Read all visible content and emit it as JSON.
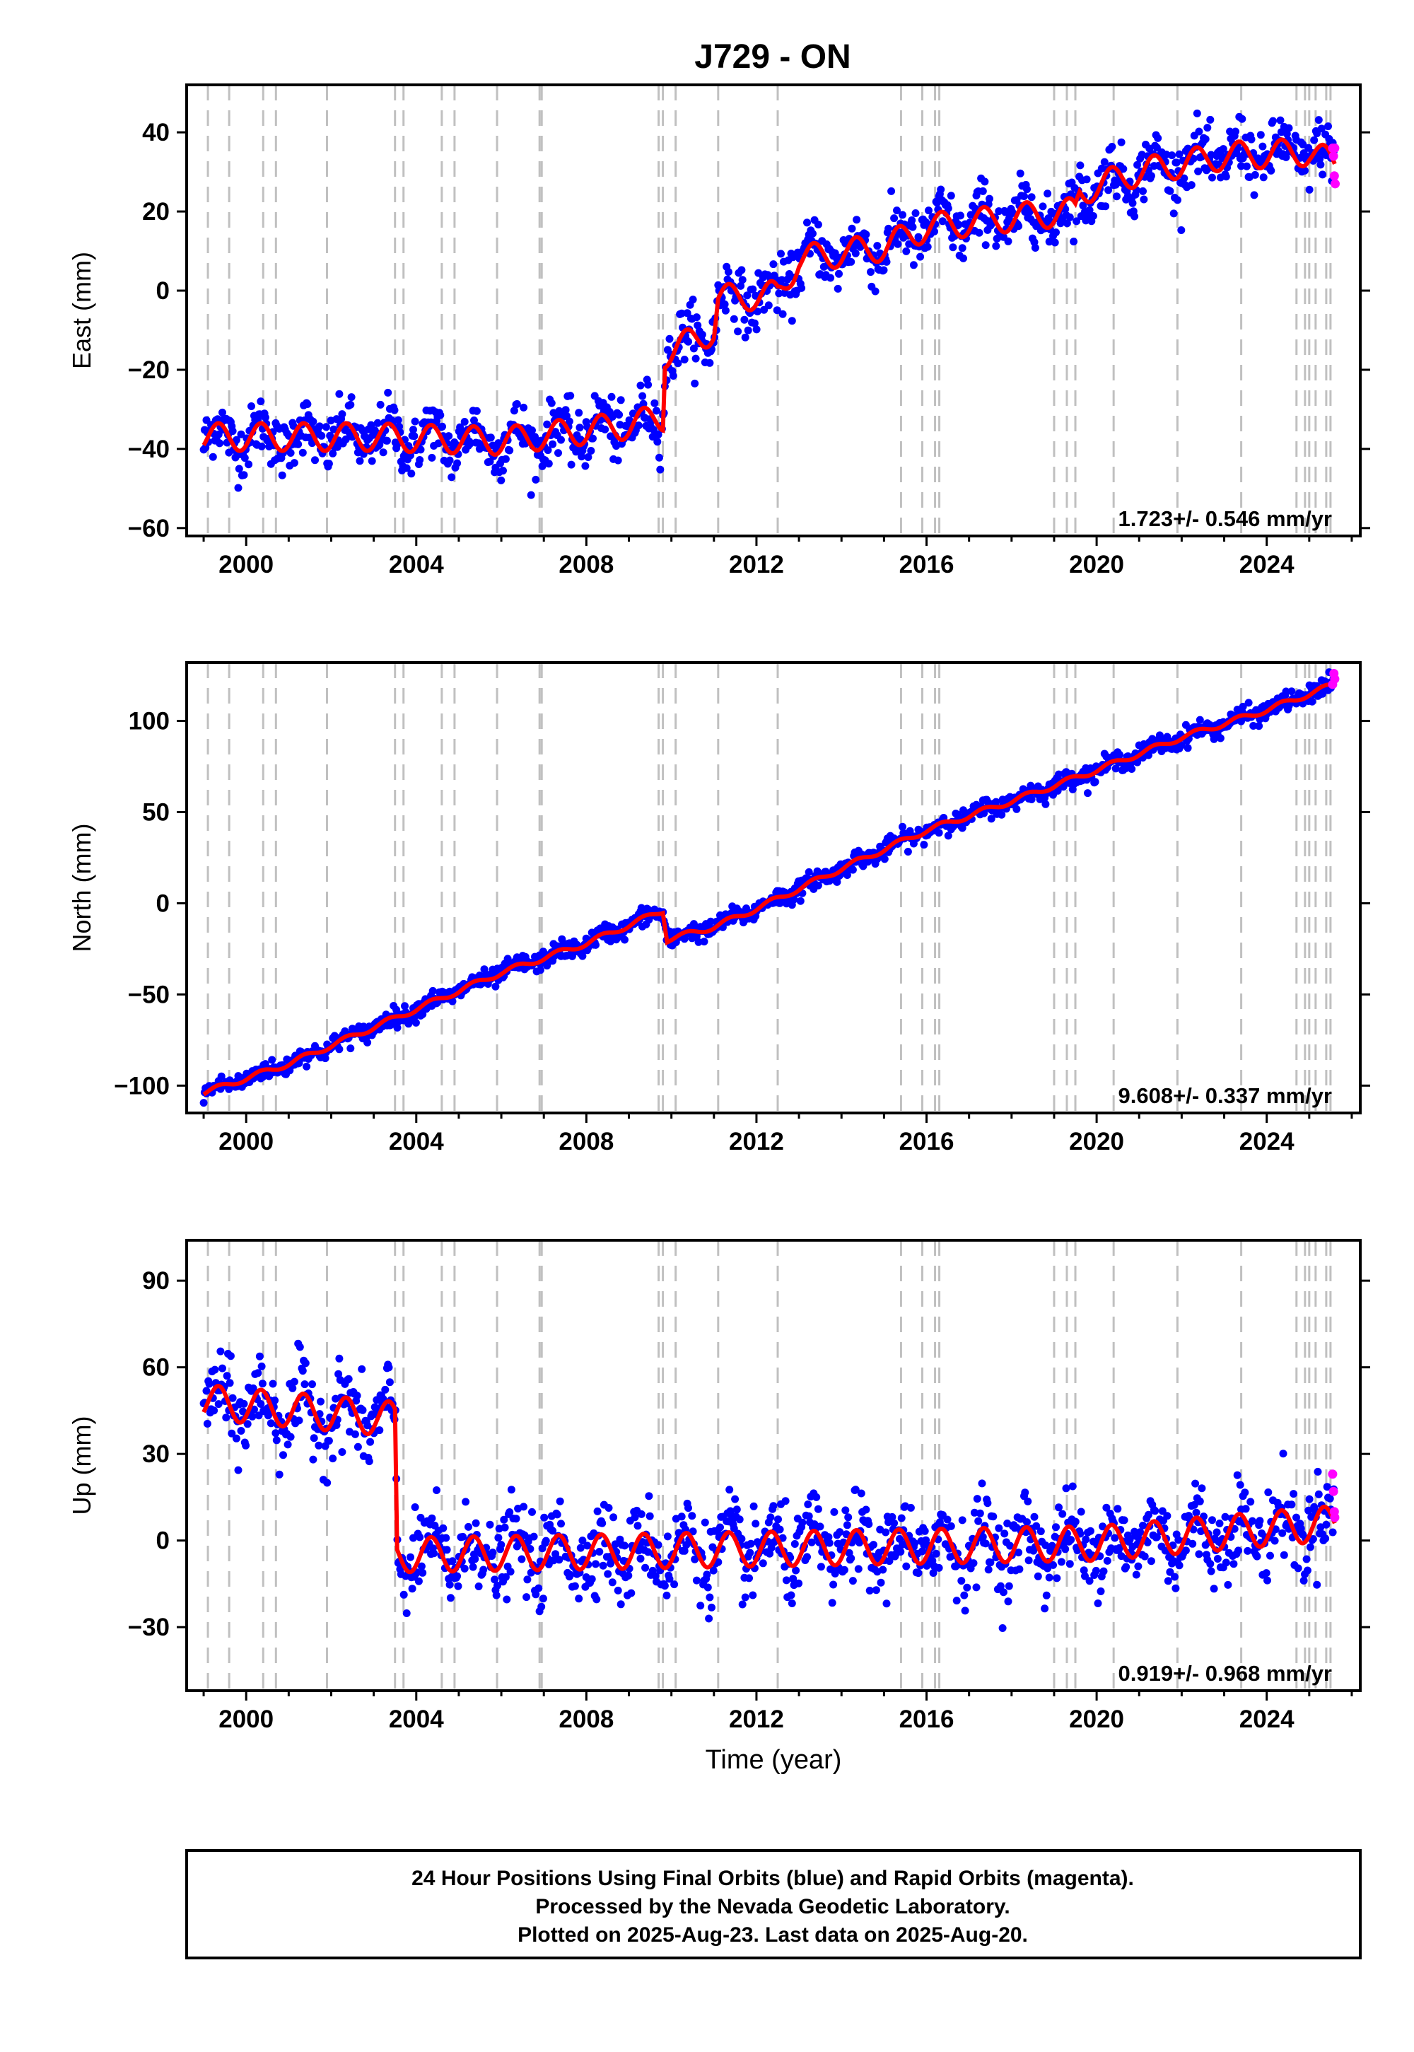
{
  "title": "J729 - ON",
  "caption": {
    "lines": [
      "24 Hour Positions Using Final Orbits (blue) and Rapid Orbits (magenta).",
      "Processed by the Nevada Geodetic Laboratory.",
      "Plotted on 2025-Aug-23. Last data on 2025-Aug-20."
    ]
  },
  "colors": {
    "final_orbits": "#0000ff",
    "rapid_orbits": "#ff00ff",
    "model_fit": "#ff0000",
    "equipment_change_lines": "#c0c0c0",
    "frame": "#000000"
  },
  "chart_data": [
    {
      "type": "scatter",
      "component": "East",
      "ylabel": "East (mm)",
      "xlabel": "",
      "xlim": [
        1998.6,
        2026.2
      ],
      "ylim": [
        -62,
        52
      ],
      "xticks": [
        2000,
        2004,
        2008,
        2012,
        2016,
        2020,
        2024
      ],
      "yticks": [
        -60,
        -40,
        -20,
        0,
        20,
        40
      ],
      "ytick_labels": [
        "−60",
        "−40",
        "−20",
        "0",
        "20",
        "40"
      ],
      "rate_label": "1.723+/- 0.546 mm/yr",
      "grid": false,
      "series": [
        {
          "name": "Final Orbits",
          "color": "#0000ff",
          "trend_points": [
            [
              1999.0,
              -37
            ],
            [
              2003.0,
              -37
            ],
            [
              2006.0,
              -38
            ],
            [
              2009.0,
              -34
            ],
            [
              2009.8,
              -32
            ],
            [
              2009.85,
              -16
            ],
            [
              2011.0,
              -10
            ],
            [
              2011.1,
              -2
            ],
            [
              2012.5,
              -1
            ],
            [
              2013.0,
              8
            ],
            [
              2015.0,
              11
            ],
            [
              2016.0,
              16
            ],
            [
              2018.5,
              19
            ],
            [
              2019.5,
              20
            ],
            [
              2019.6,
              25
            ],
            [
              2021.0,
              30
            ],
            [
              2023.0,
              34
            ],
            [
              2025.0,
              35
            ],
            [
              2025.6,
              32
            ]
          ],
          "scatter_sd": 3.6
        },
        {
          "name": "Rapid Orbits",
          "color": "#ff00ff",
          "points": [
            [
              2025.55,
              36
            ],
            [
              2025.57,
              34
            ],
            [
              2025.59,
              29
            ],
            [
              2025.61,
              27
            ],
            [
              2025.6,
              36
            ]
          ]
        }
      ],
      "model": {
        "name": "Model fit",
        "color": "#ff0000",
        "trend_points": [
          [
            1999.0,
            -37
          ],
          [
            2003.0,
            -37
          ],
          [
            2006.0,
            -38
          ],
          [
            2009.0,
            -34
          ],
          [
            2009.8,
            -32
          ],
          [
            2009.85,
            -16
          ],
          [
            2011.0,
            -10
          ],
          [
            2011.1,
            -2
          ],
          [
            2012.5,
            -1
          ],
          [
            2013.0,
            8
          ],
          [
            2015.0,
            11
          ],
          [
            2016.0,
            16
          ],
          [
            2018.5,
            19
          ],
          [
            2019.5,
            20
          ],
          [
            2019.6,
            25
          ],
          [
            2021.0,
            30
          ],
          [
            2023.0,
            34
          ],
          [
            2025.0,
            35
          ],
          [
            2025.6,
            32
          ]
        ],
        "seasonal_amplitude": 3.5
      }
    },
    {
      "type": "scatter",
      "component": "North",
      "ylabel": "North (mm)",
      "xlabel": "",
      "xlim": [
        1998.6,
        2026.2
      ],
      "ylim": [
        -115,
        132
      ],
      "xticks": [
        2000,
        2004,
        2008,
        2012,
        2016,
        2020,
        2024
      ],
      "yticks": [
        -100,
        -50,
        0,
        50,
        100
      ],
      "ytick_labels": [
        "−100",
        "−50",
        "0",
        "50",
        "100"
      ],
      "rate_label": "9.608+/- 0.337 mm/yr",
      "grid": false,
      "series": [
        {
          "name": "Final Orbits",
          "color": "#0000ff",
          "trend_points": [
            [
              1999.0,
              -104
            ],
            [
              2001.0,
              -88
            ],
            [
              2004.0,
              -58
            ],
            [
              2006.0,
              -38
            ],
            [
              2008.0,
              -22
            ],
            [
              2009.8,
              -4
            ],
            [
              2009.9,
              -20
            ],
            [
              2011.0,
              -13
            ],
            [
              2012.0,
              -3
            ],
            [
              2014.0,
              19
            ],
            [
              2016.0,
              40
            ],
            [
              2018.0,
              56
            ],
            [
              2020.0,
              73
            ],
            [
              2022.0,
              91
            ],
            [
              2024.0,
              106
            ],
            [
              2025.6,
              120
            ]
          ],
          "scatter_sd": 2.5
        },
        {
          "name": "Rapid Orbits",
          "color": "#ff00ff",
          "points": [
            [
              2025.55,
              120
            ],
            [
              2025.58,
              126
            ],
            [
              2025.6,
              123
            ]
          ]
        }
      ],
      "model": {
        "name": "Model fit",
        "color": "#ff0000",
        "trend_points": [
          [
            1999.0,
            -104
          ],
          [
            2001.0,
            -88
          ],
          [
            2004.0,
            -58
          ],
          [
            2006.0,
            -38
          ],
          [
            2008.0,
            -22
          ],
          [
            2009.8,
            -4
          ],
          [
            2009.9,
            -20
          ],
          [
            2011.0,
            -13
          ],
          [
            2012.0,
            -3
          ],
          [
            2014.0,
            19
          ],
          [
            2016.0,
            40
          ],
          [
            2018.0,
            56
          ],
          [
            2020.0,
            73
          ],
          [
            2022.0,
            91
          ],
          [
            2024.0,
            106
          ],
          [
            2025.6,
            120
          ]
        ],
        "seasonal_amplitude": 1.5
      }
    },
    {
      "type": "scatter",
      "component": "Up",
      "ylabel": "Up (mm)",
      "xlabel": "Time (year)",
      "xlim": [
        1998.6,
        2026.2
      ],
      "ylim": [
        -52,
        104
      ],
      "xticks": [
        2000,
        2004,
        2008,
        2012,
        2016,
        2020,
        2024
      ],
      "yticks": [
        -30,
        0,
        30,
        60,
        90
      ],
      "ytick_labels": [
        "−30",
        "0",
        "30",
        "60",
        "90"
      ],
      "rate_label": "0.919+/- 0.968 mm/yr",
      "grid": false,
      "series": [
        {
          "name": "Final Orbits",
          "color": "#0000ff",
          "trend_points": [
            [
              1999.0,
              48
            ],
            [
              2003.5,
              42
            ],
            [
              2003.55,
              -5
            ],
            [
              2008.0,
              -4
            ],
            [
              2012.0,
              -3
            ],
            [
              2016.0,
              -2
            ],
            [
              2020.0,
              -1
            ],
            [
              2024.0,
              4
            ],
            [
              2025.6,
              6
            ]
          ],
          "scatter_sd": 7.0
        },
        {
          "name": "Rapid Orbits",
          "color": "#ff00ff",
          "points": [
            [
              2025.55,
              23
            ],
            [
              2025.57,
              17
            ],
            [
              2025.59,
              10
            ],
            [
              2025.6,
              8
            ]
          ]
        }
      ],
      "model": {
        "name": "Model fit",
        "color": "#ff0000",
        "trend_points": [
          [
            1999.0,
            48
          ],
          [
            2003.5,
            42
          ],
          [
            2003.55,
            -5
          ],
          [
            2008.0,
            -4
          ],
          [
            2012.0,
            -3
          ],
          [
            2016.0,
            -2
          ],
          [
            2020.0,
            -1
          ],
          [
            2024.0,
            4
          ],
          [
            2025.6,
            6
          ]
        ],
        "seasonal_amplitude": 6.0
      }
    }
  ],
  "equipment_change_epochs": [
    1999.1,
    1999.6,
    2000.4,
    2000.7,
    2001.9,
    2003.5,
    2003.7,
    2004.6,
    2004.9,
    2005.9,
    2006.9,
    2006.95,
    2009.7,
    2009.8,
    2010.1,
    2011.1,
    2012.5,
    2015.4,
    2015.9,
    2016.2,
    2016.3,
    2019.0,
    2019.3,
    2019.5,
    2020.4,
    2021.9,
    2023.4,
    2024.7,
    2024.9,
    2025.0,
    2025.15,
    2025.4,
    2025.5
  ]
}
